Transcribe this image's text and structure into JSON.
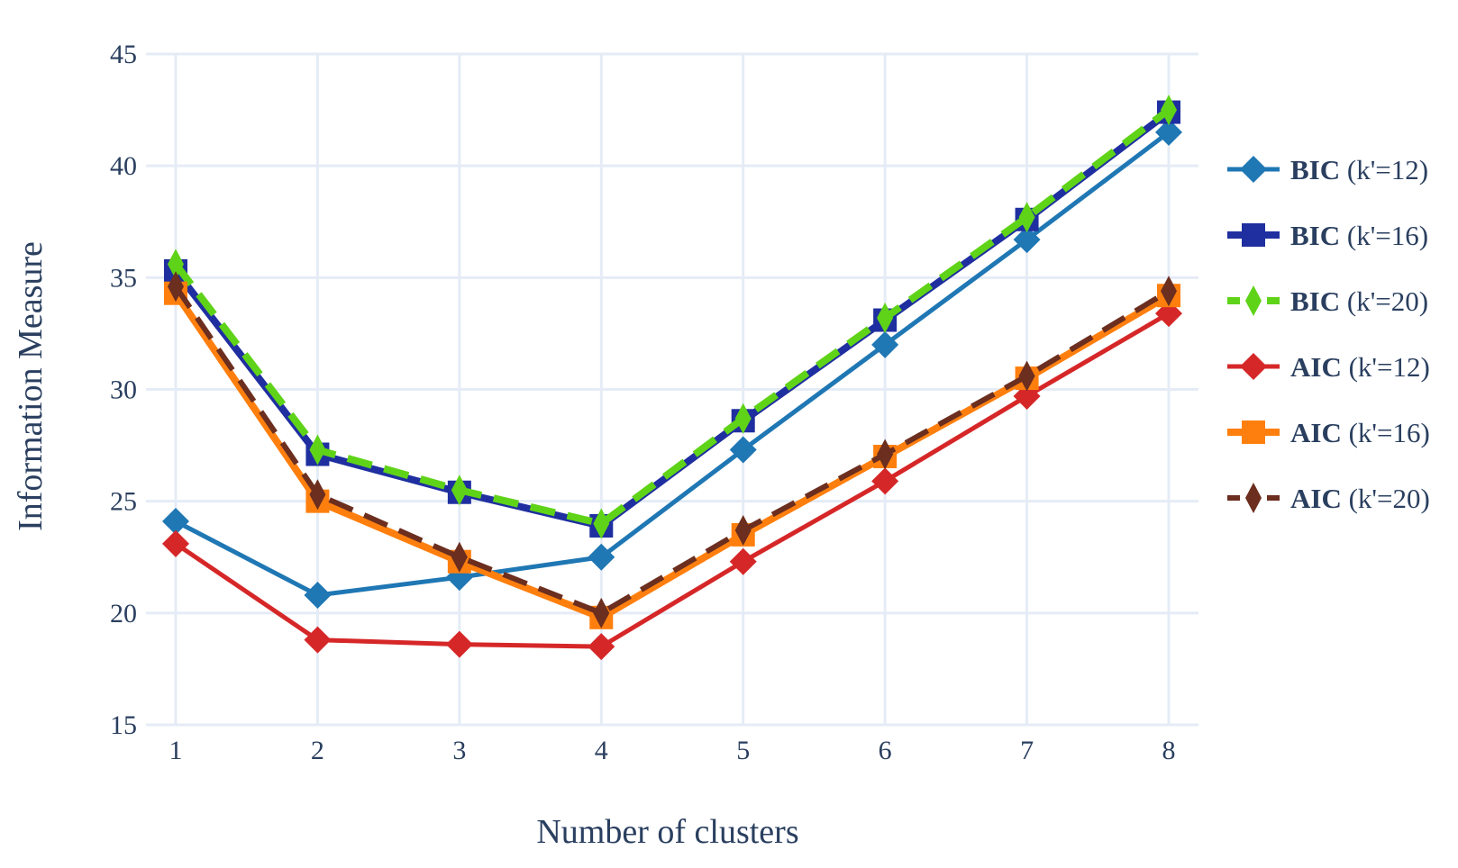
{
  "chart_data": {
    "type": "line",
    "xlabel": "Number of clusters",
    "ylabel": "Information Measure",
    "x": [
      1,
      2,
      3,
      4,
      5,
      6,
      7,
      8
    ],
    "xticks": [
      "1",
      "2",
      "3",
      "4",
      "5",
      "6",
      "7",
      "8"
    ],
    "ylim": [
      15,
      45
    ],
    "yticks": [
      "15",
      "20",
      "25",
      "30",
      "35",
      "40",
      "45"
    ],
    "grid": true,
    "legend_position": "right",
    "series": [
      {
        "name_bold": "BIC",
        "name_rest": " (k'=12)",
        "color": "#1f77b4",
        "dash": "solid",
        "marker": "diamond",
        "values": [
          24.1,
          20.8,
          21.6,
          22.5,
          27.3,
          32.0,
          36.7,
          41.5
        ]
      },
      {
        "name_bold": "BIC",
        "name_rest": " (k'=16)",
        "color": "#1f2fa0",
        "dash": "solid",
        "marker": "square",
        "values": [
          35.3,
          27.1,
          25.4,
          23.9,
          28.6,
          33.1,
          37.6,
          42.4
        ]
      },
      {
        "name_bold": "BIC",
        "name_rest": " (k'=20)",
        "color": "#5fd318",
        "dash": "dashed",
        "marker": "thin-diamond",
        "values": [
          35.6,
          27.3,
          25.5,
          24.0,
          28.7,
          33.2,
          37.7,
          42.5
        ]
      },
      {
        "name_bold": "AIC",
        "name_rest": " (k'=12)",
        "color": "#d62728",
        "dash": "solid",
        "marker": "diamond",
        "values": [
          23.1,
          18.8,
          18.6,
          18.5,
          22.3,
          25.9,
          29.7,
          33.4
        ]
      },
      {
        "name_bold": "AIC",
        "name_rest": " (k'=16)",
        "color": "#ff7f0e",
        "dash": "solid",
        "marker": "square",
        "values": [
          34.3,
          25.0,
          22.3,
          19.8,
          23.5,
          27.0,
          30.5,
          34.2
        ]
      },
      {
        "name_bold": "AIC",
        "name_rest": " (k'=20)",
        "color": "#6b2e1f",
        "dash": "dashed",
        "marker": "thin-diamond",
        "values": [
          34.6,
          25.3,
          22.5,
          20.0,
          23.7,
          27.1,
          30.6,
          34.4
        ]
      }
    ]
  }
}
